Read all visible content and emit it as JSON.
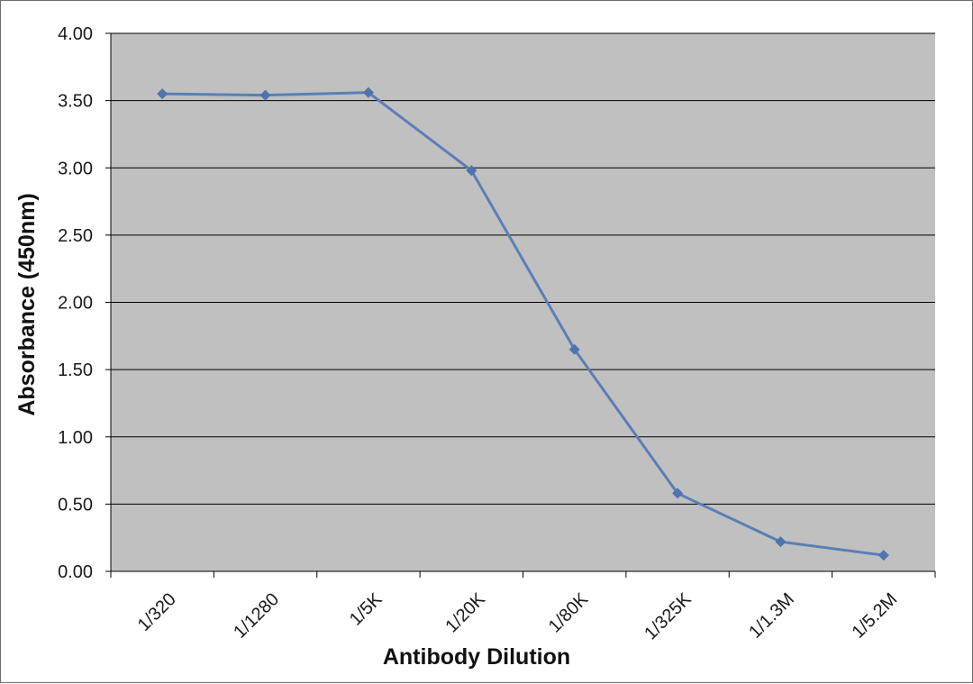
{
  "chart_data": {
    "type": "line",
    "title": "",
    "xlabel": "Antibody Dilution",
    "ylabel": "Absorbance (450nm)",
    "categories": [
      "1/320",
      "1/1280",
      "1/5K",
      "1/20K",
      "1/80K",
      "1/325K",
      "1/1.3M",
      "1/5.2M"
    ],
    "y_ticks": [
      "0.00",
      "0.50",
      "1.00",
      "1.50",
      "2.00",
      "2.50",
      "3.00",
      "3.50",
      "4.00"
    ],
    "ylim": [
      0,
      4
    ],
    "grid": "horizontal",
    "legend": "none",
    "series": [
      {
        "values": [
          3.55,
          3.54,
          3.56,
          2.98,
          1.65,
          0.58,
          0.22,
          0.12
        ]
      }
    ],
    "colors": {
      "plot_background": "#c0c0c0",
      "gridline": "#000000",
      "series_line": "#5b7fb5",
      "marker": "#4f73ad"
    }
  }
}
